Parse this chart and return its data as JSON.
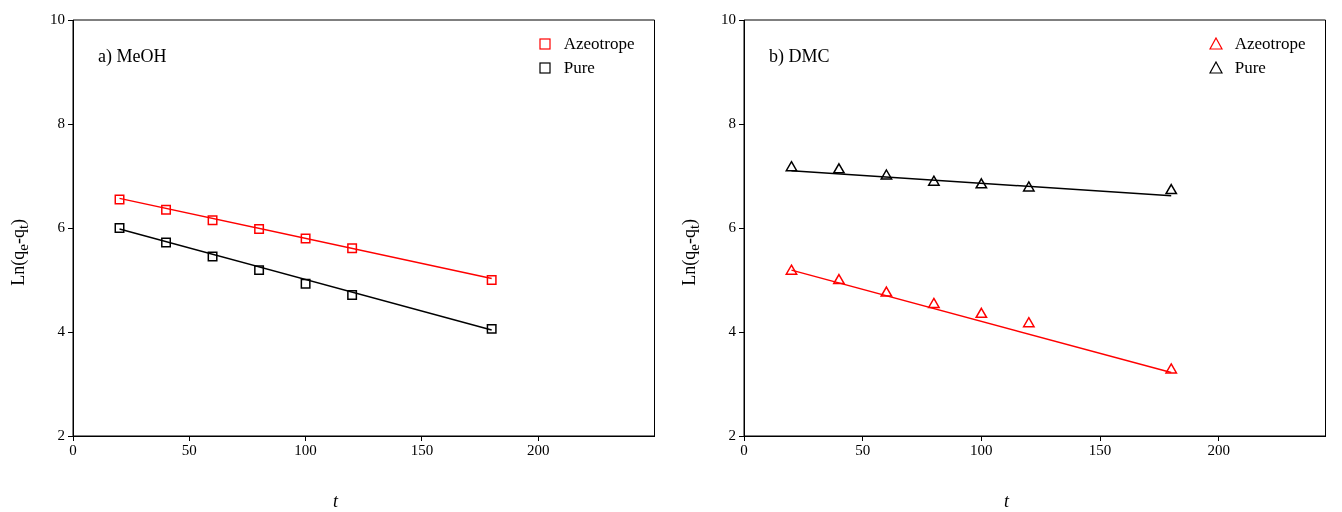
{
  "chart_data": [
    {
      "type": "scatter",
      "title": "a) MeOH",
      "xlabel": "t",
      "ylabel": "Ln(q$_{e}$-q$_{t}$)",
      "xlim": [
        0,
        250
      ],
      "xticks": [
        0,
        50,
        100,
        150,
        200
      ],
      "ylim": [
        2,
        10
      ],
      "yticks": [
        2,
        4,
        6,
        8,
        10
      ],
      "legend": "top right",
      "marker": "square",
      "x": [
        20,
        40,
        60,
        80,
        100,
        120,
        180
      ],
      "series": [
        {
          "name": "Azeotrope",
          "color": "#ff0000",
          "values": [
            6.55,
            6.35,
            6.15,
            5.98,
            5.8,
            5.61,
            5.0
          ]
        },
        {
          "name": "Pure",
          "color": "#000000",
          "values": [
            6.0,
            5.72,
            5.45,
            5.19,
            4.93,
            4.71,
            4.06
          ]
        },
        {
          "type": "line",
          "marker": "none",
          "color": "#ff0000",
          "values": [
            6.57,
            null,
            null,
            null,
            null,
            null,
            5.03
          ]
        },
        {
          "type": "line",
          "marker": "none",
          "color": "#000000",
          "values": [
            5.98,
            null,
            null,
            null,
            null,
            null,
            4.04
          ]
        }
      ]
    },
    {
      "type": "scatter",
      "title": "b) DMC",
      "xlabel": "t",
      "ylabel": "Ln(q$_{e}$-q$_{t}$)",
      "xlim": [
        0,
        245
      ],
      "xticks": [
        0,
        50,
        100,
        150,
        200
      ],
      "ylim": [
        2,
        10
      ],
      "yticks": [
        2,
        4,
        6,
        8,
        10
      ],
      "legend": "top right",
      "marker": "triangle",
      "x": [
        20,
        40,
        60,
        80,
        100,
        120,
        180
      ],
      "series": [
        {
          "name": "Azeotrope",
          "color": "#ff0000",
          "values": [
            5.17,
            4.99,
            4.75,
            4.53,
            4.34,
            4.16,
            3.27
          ]
        },
        {
          "name": "Pure",
          "color": "#000000",
          "values": [
            7.16,
            7.12,
            7.0,
            6.88,
            6.83,
            6.77,
            6.72
          ]
        },
        {
          "type": "line",
          "marker": "none",
          "color": "#ff0000",
          "values": [
            5.19,
            null,
            null,
            null,
            null,
            null,
            3.22
          ]
        },
        {
          "type": "line",
          "marker": "none",
          "color": "#000000",
          "values": [
            7.1,
            null,
            null,
            null,
            null,
            null,
            6.62
          ]
        }
      ]
    }
  ]
}
